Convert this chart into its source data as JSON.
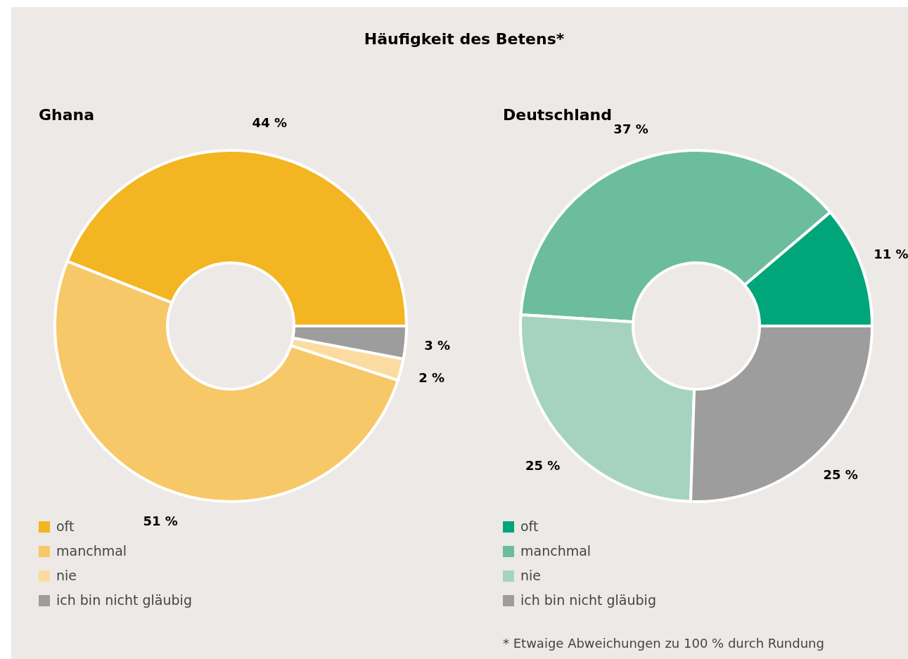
{
  "chart_data": [
    {
      "type": "donut",
      "title": "Häufigkeit des Betens*",
      "subtitle": "Ghana",
      "categories": [
        "oft",
        "manchmal",
        "nie",
        "ich bin nicht gläubig"
      ],
      "values": [
        44,
        51,
        2,
        3
      ],
      "colors": [
        "#f3b521",
        "#f7c867",
        "#fbdca0",
        "#9d9d9d"
      ],
      "value_labels": [
        "44 %",
        "51 %",
        "2 %",
        "3 %"
      ],
      "legend": "bottom left"
    },
    {
      "type": "donut",
      "subtitle": "Deutschland",
      "categories": [
        "oft",
        "manchmal",
        "nie",
        "ich bin nicht gläubig"
      ],
      "values": [
        11,
        37,
        25,
        25
      ],
      "colors": [
        "#00a57a",
        "#6bbd9d",
        "#a6d3bf",
        "#9d9d9d"
      ],
      "value_labels": [
        "11 %",
        "37 %",
        "25 %",
        "25 %"
      ],
      "legend": "bottom left",
      "annotations": [
        "* Etwaige Abweichungen zu 100 % durch Rundung"
      ]
    }
  ]
}
